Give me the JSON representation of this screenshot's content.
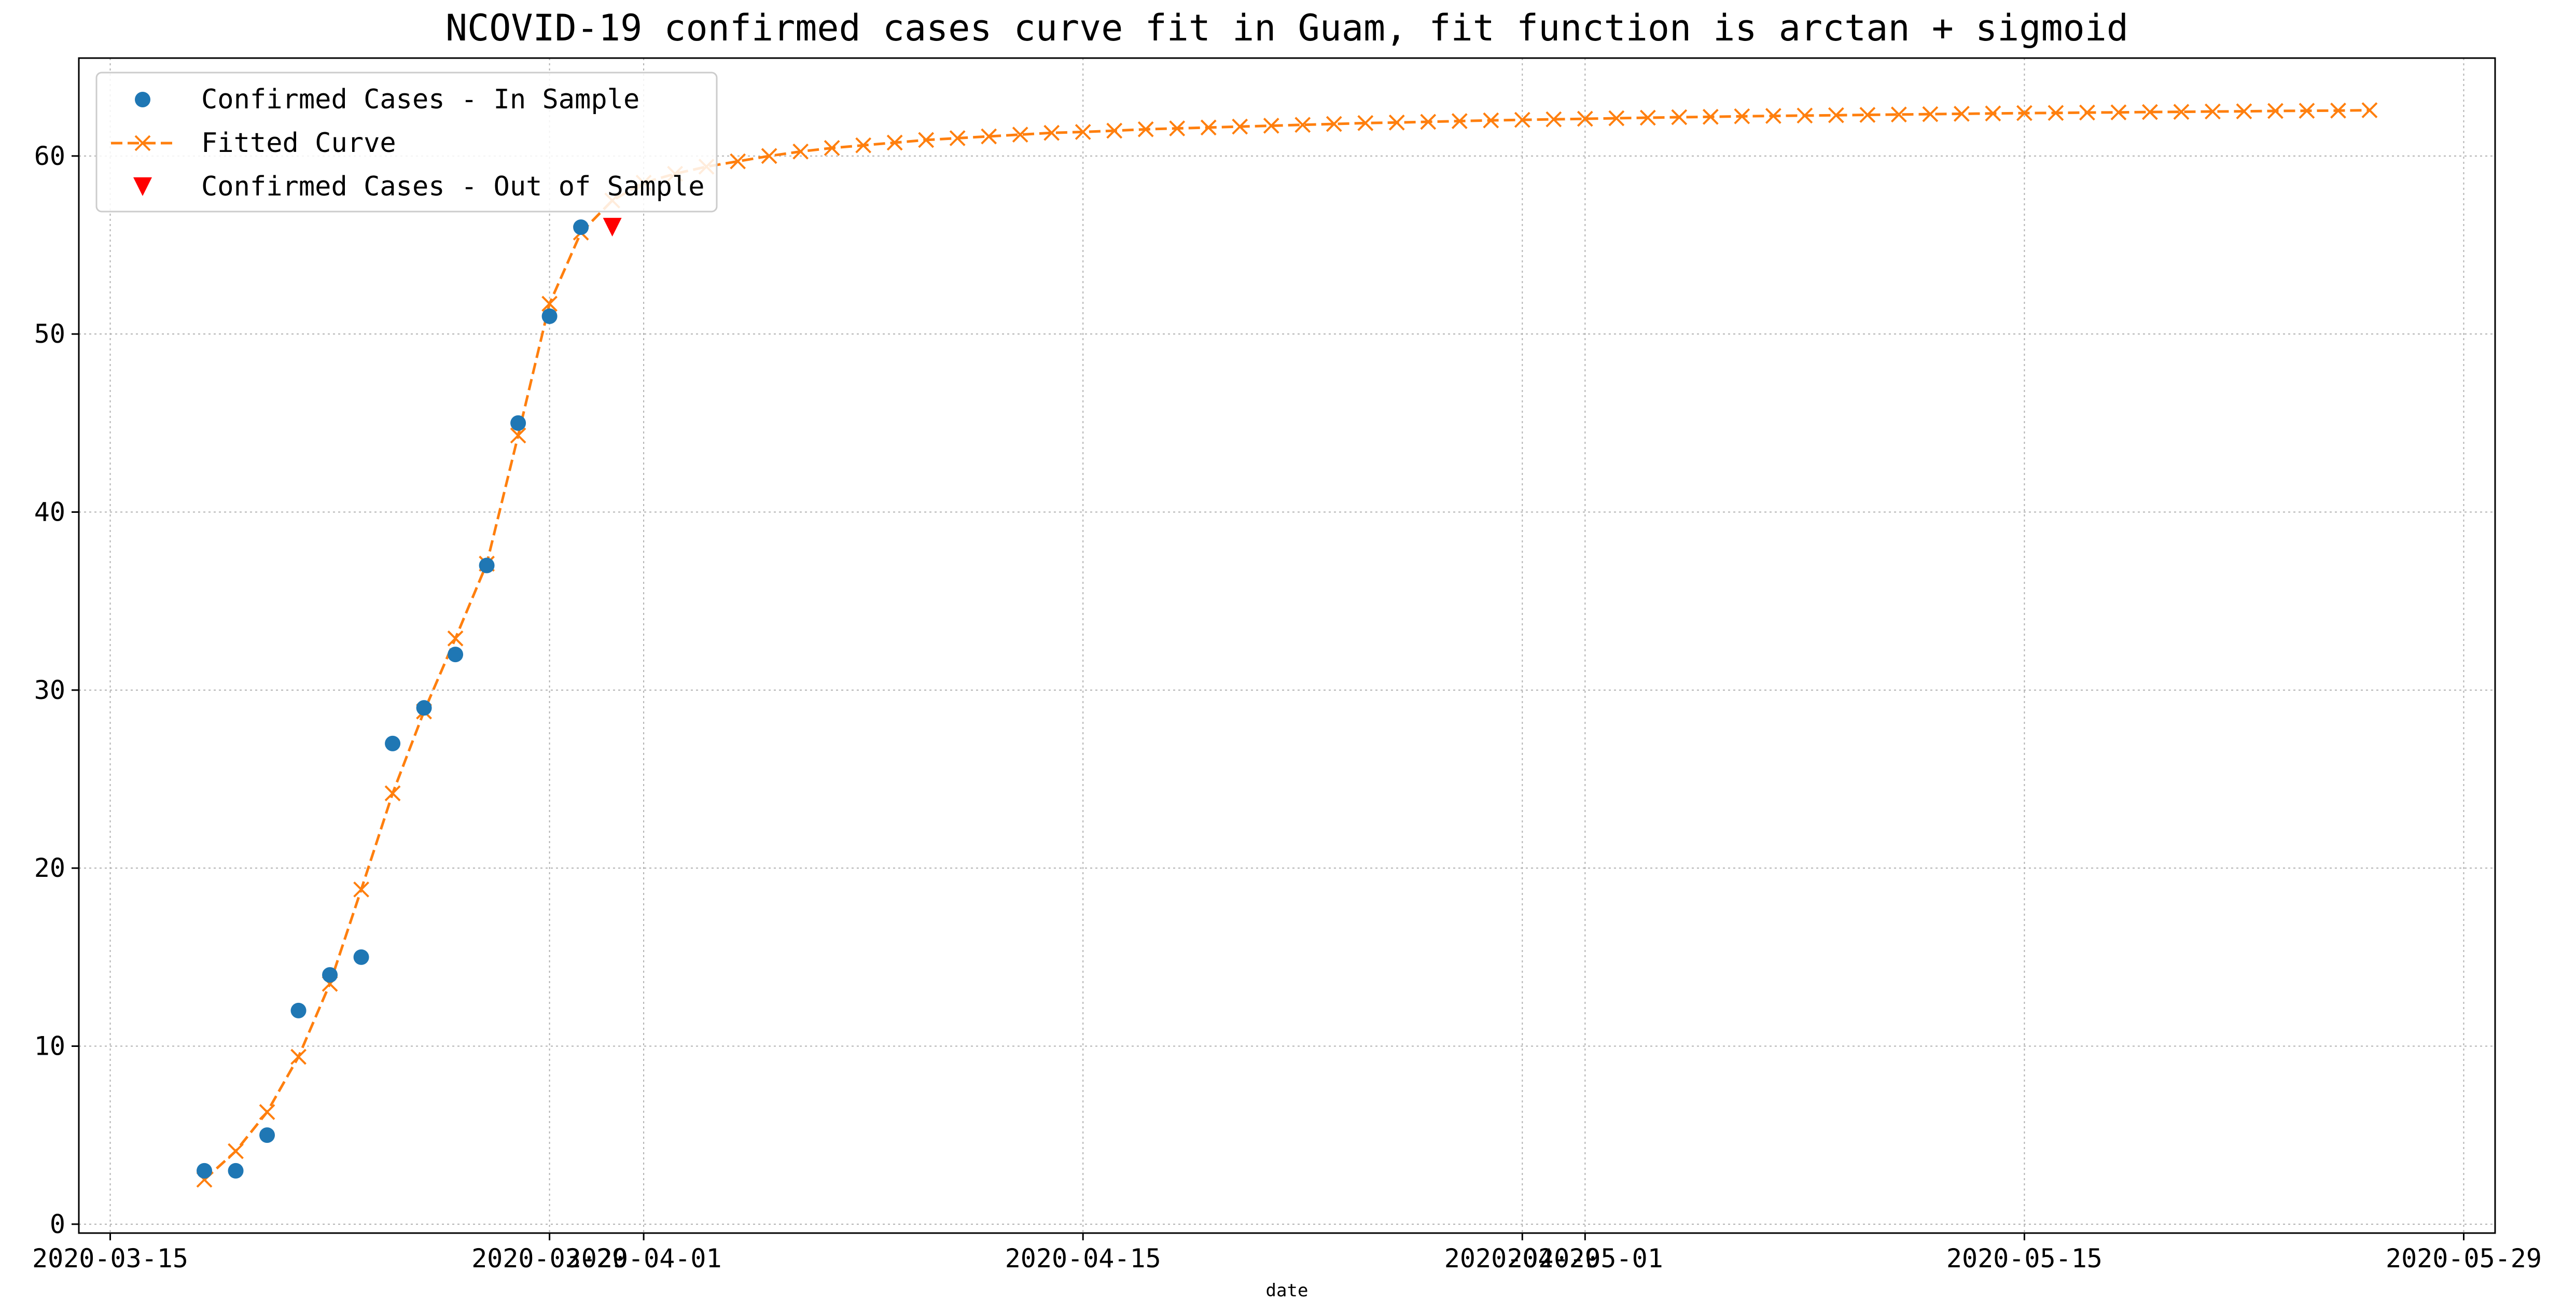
{
  "chart_data": {
    "type": "line",
    "title": "NCOVID-19 confirmed cases curve fit in Guam, fit function is arctan + sigmoid",
    "xlabel": "date",
    "ylabel": "",
    "x_axis_type": "date",
    "xlim": [
      "2020-03-14",
      "2020-05-30"
    ],
    "ylim": [
      -0.5,
      65.5
    ],
    "grid": true,
    "legend_position": "top-left",
    "x_ticks": [
      "2020-03-15",
      "2020-03-29",
      "2020-04-01",
      "2020-04-15",
      "2020-04-29",
      "2020-05-01",
      "2020-05-15",
      "2020-05-29"
    ],
    "y_ticks": [
      0,
      10,
      20,
      30,
      40,
      50,
      60
    ],
    "series": [
      {
        "name": "Confirmed Cases - In Sample",
        "kind": "scatter",
        "marker": "circle",
        "color": "#1f77b4",
        "x": [
          "2020-03-18",
          "2020-03-19",
          "2020-03-20",
          "2020-03-21",
          "2020-03-22",
          "2020-03-23",
          "2020-03-24",
          "2020-03-25",
          "2020-03-26",
          "2020-03-27",
          "2020-03-28",
          "2020-03-29",
          "2020-03-30"
        ],
        "y": [
          3,
          3,
          5,
          12,
          14,
          15,
          27,
          29,
          32,
          37,
          45,
          51,
          56
        ]
      },
      {
        "name": "Fitted Curve",
        "kind": "line",
        "marker": "x",
        "linestyle": "dashed",
        "color": "#ff7f0e",
        "x": [
          "2020-03-18",
          "2020-03-19",
          "2020-03-20",
          "2020-03-21",
          "2020-03-22",
          "2020-03-23",
          "2020-03-24",
          "2020-03-25",
          "2020-03-26",
          "2020-03-27",
          "2020-03-28",
          "2020-03-29",
          "2020-03-30",
          "2020-03-31",
          "2020-04-01",
          "2020-04-02",
          "2020-04-03",
          "2020-04-04",
          "2020-04-05",
          "2020-04-06",
          "2020-04-07",
          "2020-04-08",
          "2020-04-09",
          "2020-04-10",
          "2020-04-11",
          "2020-04-12",
          "2020-04-13",
          "2020-04-14",
          "2020-04-15",
          "2020-04-16",
          "2020-04-17",
          "2020-04-18",
          "2020-04-19",
          "2020-04-20",
          "2020-04-21",
          "2020-04-22",
          "2020-04-23",
          "2020-04-24",
          "2020-04-25",
          "2020-04-26",
          "2020-04-27",
          "2020-04-28",
          "2020-04-29",
          "2020-04-30",
          "2020-05-01",
          "2020-05-02",
          "2020-05-03",
          "2020-05-04",
          "2020-05-05",
          "2020-05-06",
          "2020-05-07",
          "2020-05-08",
          "2020-05-09",
          "2020-05-10",
          "2020-05-11",
          "2020-05-12",
          "2020-05-13",
          "2020-05-14",
          "2020-05-15",
          "2020-05-16",
          "2020-05-17",
          "2020-05-18",
          "2020-05-19",
          "2020-05-20",
          "2020-05-21",
          "2020-05-22",
          "2020-05-23",
          "2020-05-24",
          "2020-05-25",
          "2020-05-26"
        ],
        "y": [
          2.5,
          4.1,
          6.3,
          9.4,
          13.5,
          18.8,
          24.2,
          28.8,
          32.9,
          37.1,
          44.3,
          51.7,
          55.7,
          57.5,
          58.5,
          59.0,
          59.4,
          59.7,
          60.0,
          60.25,
          60.45,
          60.6,
          60.75,
          60.9,
          61.0,
          61.1,
          61.2,
          61.3,
          61.35,
          61.42,
          61.5,
          61.55,
          61.6,
          61.65,
          61.7,
          61.75,
          61.8,
          61.85,
          61.88,
          61.92,
          61.96,
          62.0,
          62.03,
          62.06,
          62.09,
          62.12,
          62.15,
          62.18,
          62.2,
          62.23,
          62.25,
          62.27,
          62.29,
          62.31,
          62.33,
          62.35,
          62.37,
          62.39,
          62.41,
          62.42,
          62.44,
          62.45,
          62.47,
          62.48,
          62.5,
          62.51,
          62.53,
          62.54,
          62.55,
          62.57
        ]
      },
      {
        "name": "Confirmed Cases - Out of Sample",
        "kind": "scatter",
        "marker": "triangle-down",
        "color": "#ff0000",
        "x": [
          "2020-03-31"
        ],
        "y": [
          56
        ]
      }
    ]
  }
}
